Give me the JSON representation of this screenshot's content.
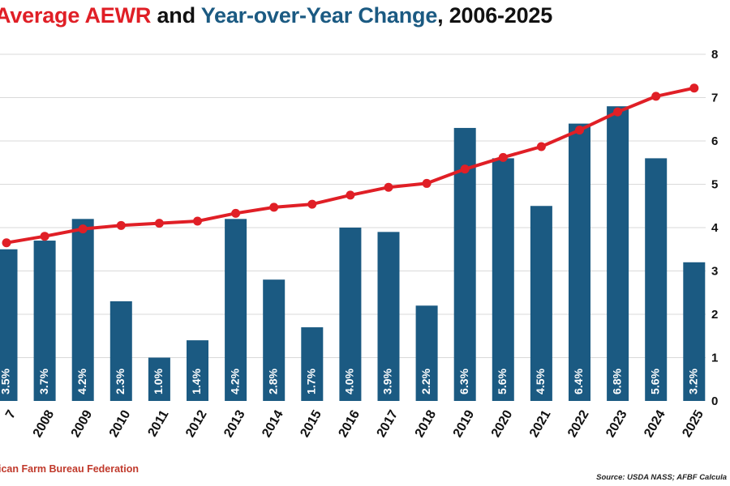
{
  "title": {
    "part1": "Average AEWR",
    "part2": " and ",
    "part3": "Year-over-Year Change",
    "part4": ", 2006-2025"
  },
  "footer": {
    "left": "ican Farm Bureau Federation",
    "right": "Source: USDA NASS; AFBF Calcula"
  },
  "colors": {
    "bar": "#1b5a82",
    "line": "#e01f26",
    "grid": "#d9d9d9",
    "title_red": "#e01f26",
    "title_blue": "#1b5a82"
  },
  "chart_data": {
    "type": "bar",
    "categories": [
      "7",
      "2008",
      "2009",
      "2010",
      "2011",
      "2012",
      "2013",
      "2014",
      "2015",
      "2016",
      "2017",
      "2018",
      "2019",
      "2020",
      "2021",
      "2022",
      "2023",
      "2024",
      "2025"
    ],
    "series": [
      {
        "type": "bar",
        "values": [
          3.5,
          3.7,
          4.2,
          2.3,
          1.0,
          1.4,
          4.2,
          2.8,
          1.7,
          4.0,
          3.9,
          2.2,
          6.3,
          5.6,
          4.5,
          6.4,
          6.8,
          5.6,
          3.2
        ],
        "labels": [
          "3.5%",
          "3.7%",
          "4.2%",
          "2.3%",
          "1.0%",
          "1.4%",
          "4.2%",
          "2.8%",
          "1.7%",
          "4.0%",
          "3.9%",
          "2.2%",
          "6.3%",
          "5.6%",
          "4.5%",
          "6.4%",
          "6.8%",
          "5.6%",
          "3.2%"
        ]
      },
      {
        "type": "line",
        "values": [
          3.65,
          3.8,
          3.97,
          4.05,
          4.1,
          4.15,
          4.33,
          4.47,
          4.54,
          4.75,
          4.93,
          5.02,
          5.35,
          5.62,
          5.87,
          6.25,
          6.67,
          7.03,
          7.22
        ]
      }
    ],
    "y_right": {
      "ticks": [
        "0",
        "1",
        "2",
        "3",
        "4",
        "5",
        "6",
        "7",
        "8"
      ],
      "ylim": [
        0,
        8
      ]
    },
    "grid": true
  }
}
